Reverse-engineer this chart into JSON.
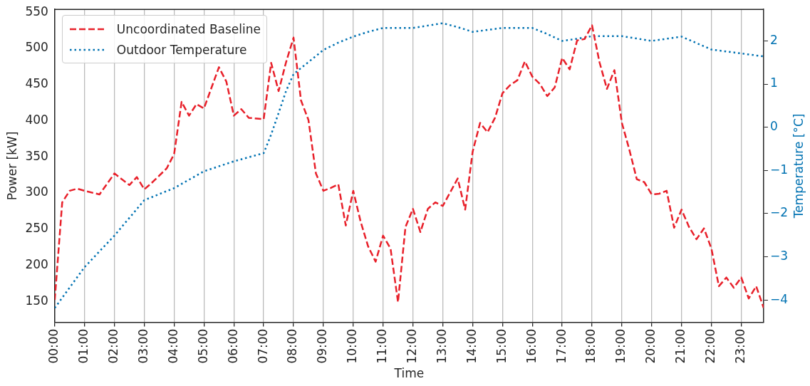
{
  "chart_data": {
    "type": "line",
    "xlabel": "Time",
    "ylabel": "Power [kW]",
    "y2label": "Temperature [°C]",
    "xlim": [
      0,
      23.75
    ],
    "xticks": [
      {
        "value": 0,
        "label": "00:00"
      },
      {
        "value": 1,
        "label": "01:00"
      },
      {
        "value": 2,
        "label": "02:00"
      },
      {
        "value": 3,
        "label": "03:00"
      },
      {
        "value": 4,
        "label": "04:00"
      },
      {
        "value": 5,
        "label": "05:00"
      },
      {
        "value": 6,
        "label": "06:00"
      },
      {
        "value": 7,
        "label": "07:00"
      },
      {
        "value": 8,
        "label": "08:00"
      },
      {
        "value": 9,
        "label": "09:00"
      },
      {
        "value": 10,
        "label": "10:00"
      },
      {
        "value": 11,
        "label": "11:00"
      },
      {
        "value": 12,
        "label": "12:00"
      },
      {
        "value": 13,
        "label": "13:00"
      },
      {
        "value": 14,
        "label": "14:00"
      },
      {
        "value": 15,
        "label": "15:00"
      },
      {
        "value": 16,
        "label": "16:00"
      },
      {
        "value": 17,
        "label": "17:00"
      },
      {
        "value": 18,
        "label": "18:00"
      },
      {
        "value": 19,
        "label": "19:00"
      },
      {
        "value": 20,
        "label": "20:00"
      },
      {
        "value": 21,
        "label": "21:00"
      },
      {
        "value": 22,
        "label": "22:00"
      },
      {
        "value": 23,
        "label": "23:00"
      }
    ],
    "ylim": [
      121,
      554
    ],
    "yticks": [
      150,
      200,
      250,
      300,
      350,
      400,
      450,
      500,
      550
    ],
    "y2lim": [
      -4.52,
      2.73
    ],
    "y2ticks": [
      {
        "value": -4,
        "label": "−4"
      },
      {
        "value": -3,
        "label": "−3"
      },
      {
        "value": -2,
        "label": "−2"
      },
      {
        "value": -1,
        "label": "−1"
      },
      0,
      1,
      2
    ],
    "grid": "x",
    "legend": "top left",
    "series": [
      {
        "name": "Uncoordinated Baseline",
        "color": "#e8202a",
        "line_style": "dashed",
        "x": [
          0,
          0.25,
          0.5,
          0.75,
          1,
          1.5,
          2,
          2.5,
          2.75,
          3,
          3.25,
          3.75,
          4,
          4.25,
          4.5,
          4.75,
          5,
          5.5,
          5.75,
          6,
          6.25,
          6.5,
          7,
          7.25,
          7.5,
          7.75,
          8,
          8.25,
          8.5,
          8.75,
          9,
          9.25,
          9.5,
          9.75,
          10,
          10.25,
          10.5,
          10.75,
          11,
          11.25,
          11.5,
          11.75,
          12,
          12.25,
          12.5,
          12.75,
          13,
          13.25,
          13.5,
          13.75,
          14,
          14.25,
          14.5,
          14.75,
          15,
          15.25,
          15.5,
          15.75,
          16,
          16.25,
          16.5,
          16.75,
          17,
          17.25,
          17.5,
          17.75,
          18,
          18.25,
          18.5,
          18.75,
          19,
          19.25,
          19.5,
          19.75,
          20,
          20.25,
          20.5,
          20.75,
          21,
          21.25,
          21.5,
          21.75,
          22,
          22.25,
          22.5,
          22.75,
          23,
          23.25,
          23.5,
          23.75
        ],
        "values": [
          152,
          287,
          303,
          306,
          303,
          298,
          327,
          311,
          322,
          305,
          314,
          334,
          354,
          426,
          407,
          423,
          417,
          474,
          454,
          407,
          416,
          404,
          402,
          480,
          441,
          481,
          515,
          428,
          401,
          327,
          303,
          307,
          312,
          255,
          303,
          260,
          226,
          205,
          241,
          223,
          149,
          253,
          278,
          246,
          278,
          287,
          282,
          301,
          320,
          277,
          357,
          397,
          384,
          404,
          438,
          449,
          456,
          482,
          461,
          451,
          434,
          446,
          487,
          471,
          511,
          513,
          532,
          481,
          444,
          470,
          397,
          360,
          319,
          315,
          298,
          299,
          303,
          252,
          277,
          253,
          236,
          251,
          223,
          171,
          183,
          169,
          183,
          154,
          171,
          141
        ]
      },
      {
        "name": "Outdoor Temperature",
        "color": "#0072b2",
        "line_style": "dotted",
        "axis": "y2",
        "x": [
          0,
          1,
          2,
          3,
          4,
          5,
          6,
          7,
          7.25,
          7.5,
          7.75,
          8,
          8.5,
          9,
          9.5,
          10,
          10.5,
          11,
          12,
          13,
          13.5,
          14,
          15,
          16,
          16.5,
          17,
          17.5,
          18,
          19,
          20,
          21,
          22,
          23,
          23.75
        ],
        "values": [
          -4.19,
          -3.24,
          -2.51,
          -1.69,
          -1.41,
          -1.02,
          -0.79,
          -0.6,
          -0.17,
          0.33,
          0.84,
          1.23,
          1.51,
          1.79,
          1.96,
          2.1,
          2.21,
          2.3,
          2.3,
          2.41,
          2.32,
          2.21,
          2.3,
          2.3,
          2.16,
          2.0,
          2.05,
          2.11,
          2.11,
          2.0,
          2.1,
          1.8,
          1.71,
          1.64
        ]
      }
    ]
  }
}
